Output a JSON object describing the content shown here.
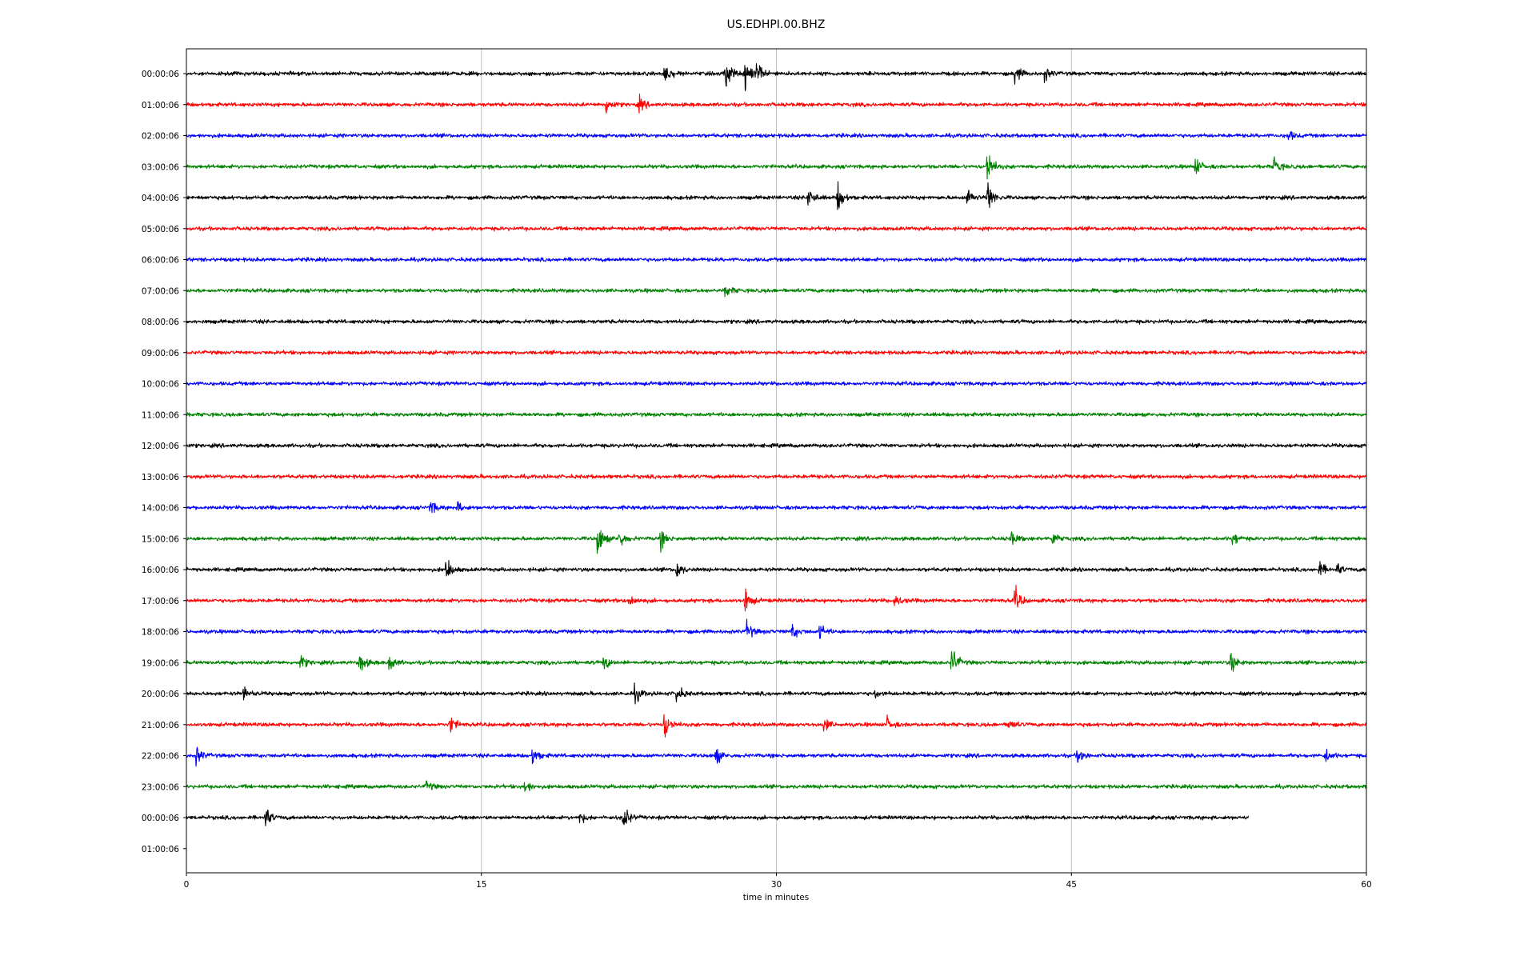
{
  "chart_data": {
    "type": "line",
    "title": "US.EDHPI.00.BHZ",
    "xlabel": "time in minutes",
    "ylabel": "",
    "xlim": [
      0,
      60
    ],
    "xticks": [
      "0",
      "15",
      "30",
      "45",
      "60"
    ],
    "xtick_values": [
      0,
      15,
      30,
      45,
      60
    ],
    "grid": "vertical",
    "colors": [
      "#000000",
      "#ff0000",
      "#0000ff",
      "#008000"
    ],
    "row_labels": [
      "00:00:06",
      "01:00:06",
      "02:00:06",
      "03:00:06",
      "04:00:06",
      "05:00:06",
      "06:00:06",
      "07:00:06",
      "08:00:06",
      "09:00:06",
      "10:00:06",
      "11:00:06",
      "12:00:06",
      "13:00:06",
      "14:00:06",
      "15:00:06",
      "16:00:06",
      "17:00:06",
      "18:00:06",
      "19:00:06",
      "20:00:06",
      "21:00:06",
      "22:00:06",
      "23:00:06",
      "00:00:06",
      "01:00:06"
    ],
    "series": [
      {
        "label": "00:00:06",
        "end_minute": 60,
        "events": [
          [
            24.3,
            0.7
          ],
          [
            27.4,
            1.0
          ],
          [
            28.4,
            0.9
          ],
          [
            29.0,
            0.6
          ],
          [
            42.1,
            0.6
          ],
          [
            43.6,
            0.4
          ]
        ]
      },
      {
        "label": "01:00:06",
        "end_minute": 60,
        "events": [
          [
            21.3,
            0.5
          ],
          [
            23.0,
            0.4
          ]
        ]
      },
      {
        "label": "02:00:06",
        "end_minute": 60,
        "events": [
          [
            56.0,
            0.3
          ]
        ]
      },
      {
        "label": "03:00:06",
        "end_minute": 60,
        "events": [
          [
            40.7,
            1.0
          ],
          [
            51.3,
            0.5
          ],
          [
            55.3,
            0.5
          ]
        ]
      },
      {
        "label": "04:00:06",
        "end_minute": 60,
        "events": [
          [
            31.6,
            0.6
          ],
          [
            33.1,
            0.8
          ],
          [
            39.7,
            0.5
          ],
          [
            40.7,
            1.0
          ]
        ]
      },
      {
        "label": "05:00:06",
        "end_minute": 60,
        "events": []
      },
      {
        "label": "06:00:06",
        "end_minute": 60,
        "events": []
      },
      {
        "label": "07:00:06",
        "end_minute": 60,
        "events": [
          [
            27.4,
            0.4
          ]
        ]
      },
      {
        "label": "08:00:06",
        "end_minute": 60,
        "events": []
      },
      {
        "label": "09:00:06",
        "end_minute": 60,
        "events": []
      },
      {
        "label": "10:00:06",
        "end_minute": 60,
        "events": []
      },
      {
        "label": "11:00:06",
        "end_minute": 60,
        "events": []
      },
      {
        "label": "12:00:06",
        "end_minute": 60,
        "events": []
      },
      {
        "label": "13:00:06",
        "end_minute": 60,
        "events": []
      },
      {
        "label": "14:00:06",
        "end_minute": 60,
        "events": [
          [
            12.4,
            0.4
          ],
          [
            13.8,
            0.3
          ]
        ]
      },
      {
        "label": "15:00:06",
        "end_minute": 60,
        "events": [
          [
            20.9,
            1.0
          ],
          [
            22.0,
            0.5
          ],
          [
            24.1,
            0.5
          ],
          [
            41.9,
            0.4
          ],
          [
            44.0,
            0.4
          ],
          [
            53.2,
            0.4
          ]
        ]
      },
      {
        "label": "16:00:06",
        "end_minute": 60,
        "events": [
          [
            13.2,
            0.7
          ],
          [
            24.9,
            0.5
          ],
          [
            57.6,
            0.4
          ],
          [
            58.5,
            0.3
          ]
        ]
      },
      {
        "label": "17:00:06",
        "end_minute": 60,
        "events": [
          [
            22.5,
            0.4
          ],
          [
            28.4,
            0.7
          ],
          [
            36.0,
            0.4
          ],
          [
            42.1,
            0.7
          ]
        ]
      },
      {
        "label": "18:00:06",
        "end_minute": 60,
        "events": [
          [
            28.5,
            0.5
          ],
          [
            30.8,
            0.4
          ],
          [
            32.2,
            0.4
          ]
        ]
      },
      {
        "label": "19:00:06",
        "end_minute": 60,
        "events": [
          [
            5.8,
            0.4
          ],
          [
            8.8,
            0.6
          ],
          [
            10.3,
            0.5
          ],
          [
            21.2,
            0.4
          ],
          [
            38.9,
            0.9
          ],
          [
            53.1,
            0.6
          ]
        ]
      },
      {
        "label": "20:00:06",
        "end_minute": 60,
        "events": [
          [
            2.9,
            0.4
          ],
          [
            22.8,
            0.5
          ],
          [
            24.9,
            0.5
          ],
          [
            35.0,
            0.2
          ]
        ]
      },
      {
        "label": "21:00:06",
        "end_minute": 60,
        "events": [
          [
            13.4,
            0.5
          ],
          [
            24.3,
            0.8
          ],
          [
            32.4,
            0.4
          ],
          [
            35.6,
            0.4
          ],
          [
            41.8,
            0.3
          ]
        ]
      },
      {
        "label": "22:00:06",
        "end_minute": 60,
        "events": [
          [
            0.5,
            0.5
          ],
          [
            17.6,
            0.5
          ],
          [
            26.9,
            0.5
          ],
          [
            45.3,
            0.5
          ],
          [
            57.9,
            0.4
          ]
        ]
      },
      {
        "label": "23:00:06",
        "end_minute": 60,
        "events": [
          [
            12.2,
            0.3
          ],
          [
            17.2,
            0.4
          ]
        ]
      },
      {
        "label": "00:00:06",
        "end_minute": 54,
        "events": [
          [
            4.0,
            0.6
          ],
          [
            22.2,
            0.7
          ],
          [
            20.0,
            0.3
          ]
        ]
      }
    ]
  }
}
